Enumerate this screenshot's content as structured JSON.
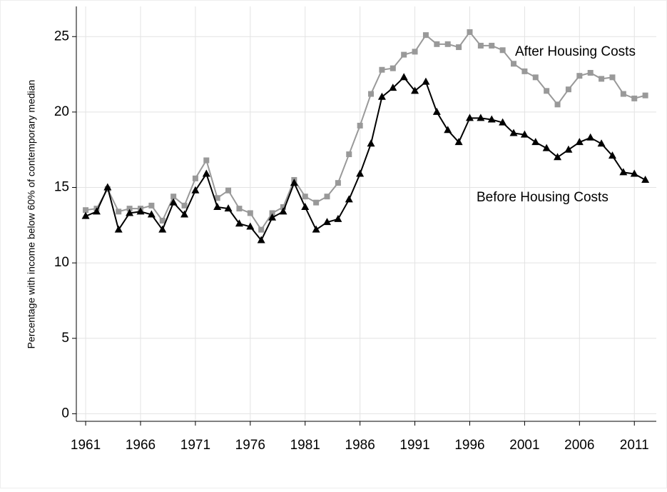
{
  "chart_data": {
    "type": "line",
    "y_label": "Percentage with income below 60% of contemporary median",
    "x": [
      1961,
      1962,
      1963,
      1964,
      1965,
      1966,
      1967,
      1968,
      1969,
      1970,
      1971,
      1972,
      1973,
      1974,
      1975,
      1976,
      1977,
      1978,
      1979,
      1980,
      1981,
      1982,
      1983,
      1984,
      1985,
      1986,
      1987,
      1988,
      1989,
      1990,
      1991,
      1992,
      1993,
      1994,
      1995,
      1996,
      1997,
      1998,
      1999,
      2000,
      2001,
      2002,
      2003,
      2004,
      2005,
      2006,
      2007,
      2008,
      2009,
      2010,
      2011,
      2012
    ],
    "series": [
      {
        "name": "After Housing Costs",
        "color": "#999999",
        "marker": "square",
        "values": [
          13.5,
          13.6,
          14.9,
          13.4,
          13.6,
          13.6,
          13.8,
          12.8,
          14.4,
          13.8,
          15.6,
          16.8,
          14.3,
          14.8,
          13.6,
          13.3,
          12.2,
          13.3,
          13.7,
          15.5,
          14.4,
          14.0,
          14.4,
          15.3,
          17.2,
          19.1,
          21.2,
          22.8,
          22.9,
          23.8,
          24.0,
          25.1,
          24.5,
          24.5,
          24.3,
          25.3,
          24.4,
          24.4,
          24.1,
          23.2,
          22.7,
          22.3,
          21.4,
          20.5,
          21.5,
          22.4,
          22.6,
          22.2,
          22.3,
          21.2,
          20.9,
          21.1
        ]
      },
      {
        "name": "Before Housing Costs",
        "color": "#000000",
        "marker": "triangle",
        "values": [
          13.1,
          13.4,
          15.0,
          12.2,
          13.3,
          13.4,
          13.2,
          12.2,
          14.0,
          13.2,
          14.8,
          15.9,
          13.7,
          13.6,
          12.6,
          12.4,
          11.5,
          13.0,
          13.4,
          15.3,
          13.7,
          12.2,
          12.7,
          12.9,
          14.2,
          15.9,
          17.9,
          21.0,
          21.6,
          22.3,
          21.4,
          22.0,
          20.0,
          18.8,
          18.0,
          19.6,
          19.6,
          19.5,
          19.3,
          18.6,
          18.5,
          18.0,
          17.6,
          17.0,
          17.5,
          18.0,
          18.3,
          17.9,
          17.1,
          16.0,
          15.9,
          15.5
        ]
      }
    ],
    "xlim": [
      1960.15,
      2013.0
    ],
    "xticks": [
      1961,
      1966,
      1971,
      1976,
      1981,
      1986,
      1991,
      1996,
      2001,
      2006,
      2011
    ],
    "ylim": [
      -0.5,
      27
    ],
    "yticks": [
      0,
      5,
      10,
      15,
      20,
      25
    ],
    "grid": true
  }
}
